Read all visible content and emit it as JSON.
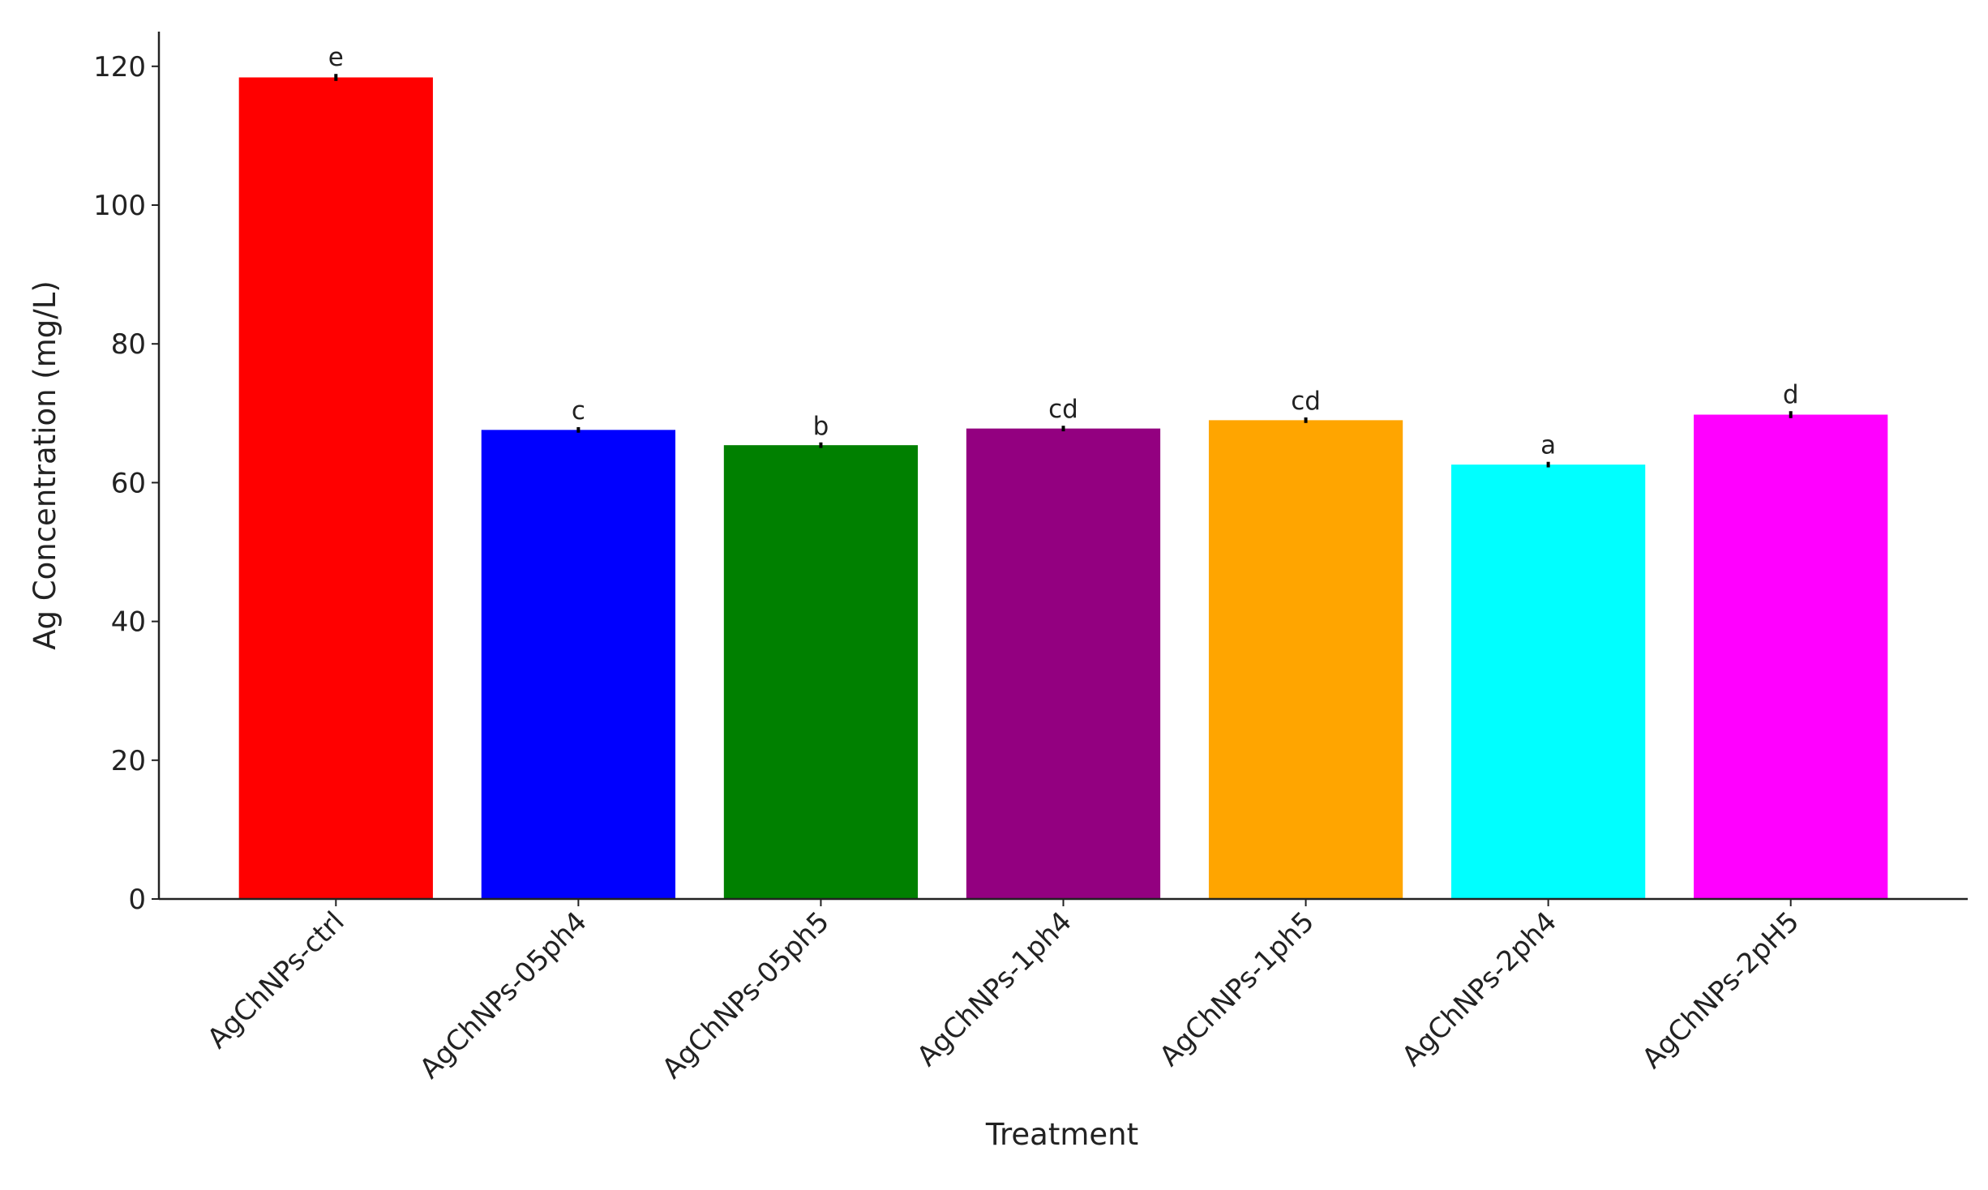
{
  "chart_data": {
    "type": "bar",
    "x_label": "Treatment",
    "y_label": "Ag Concentration (mg/L)",
    "categories": [
      "AgChNPs-ctrl",
      "AgChNPs-05ph4",
      "AgChNPs-05ph5",
      "AgChNPs-1ph4",
      "AgChNPs-1ph5",
      "AgChNPs-2ph4",
      "AgChNPs-2pH5"
    ],
    "values": [
      118.4,
      67.6,
      65.4,
      67.8,
      69.0,
      62.6,
      69.8
    ],
    "errors": [
      0.5,
      0.4,
      0.4,
      0.4,
      0.4,
      0.4,
      0.5
    ],
    "annotations": [
      "e",
      "c",
      "b",
      "cd",
      "cd",
      "a",
      "d"
    ],
    "colors": [
      "#ff0000",
      "#0000ff",
      "#008000",
      "#930080",
      "#ffa500",
      "#00ffff",
      "#ff00ff"
    ],
    "ylim": [
      0,
      125
    ],
    "yticks": [
      0,
      20,
      40,
      60,
      80,
      100,
      120
    ],
    "grid": false
  }
}
